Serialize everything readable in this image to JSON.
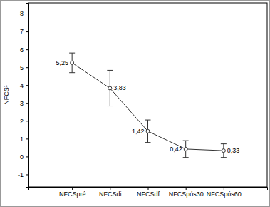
{
  "chart_data": {
    "type": "line",
    "y_label": "NFCS¹",
    "categories": [
      "NFCSpré",
      "NFCSdi",
      "NFCSdf",
      "NFCSpós30",
      "NFCSpós60"
    ],
    "values": [
      5.25,
      3.83,
      1.42,
      0.42,
      0.33
    ],
    "value_labels": [
      "5,25",
      "3,83",
      "1,42",
      "0,42",
      "0,33"
    ],
    "errors": [
      0.55,
      1.0,
      0.63,
      0.47,
      0.38
    ],
    "ylim": [
      -1.7,
      8.6
    ],
    "yticks": [
      -1,
      0,
      1,
      2,
      3,
      4,
      5,
      6,
      7,
      8
    ],
    "color": "#333333",
    "marker": "circle",
    "data_labels": true,
    "grid": false
  }
}
